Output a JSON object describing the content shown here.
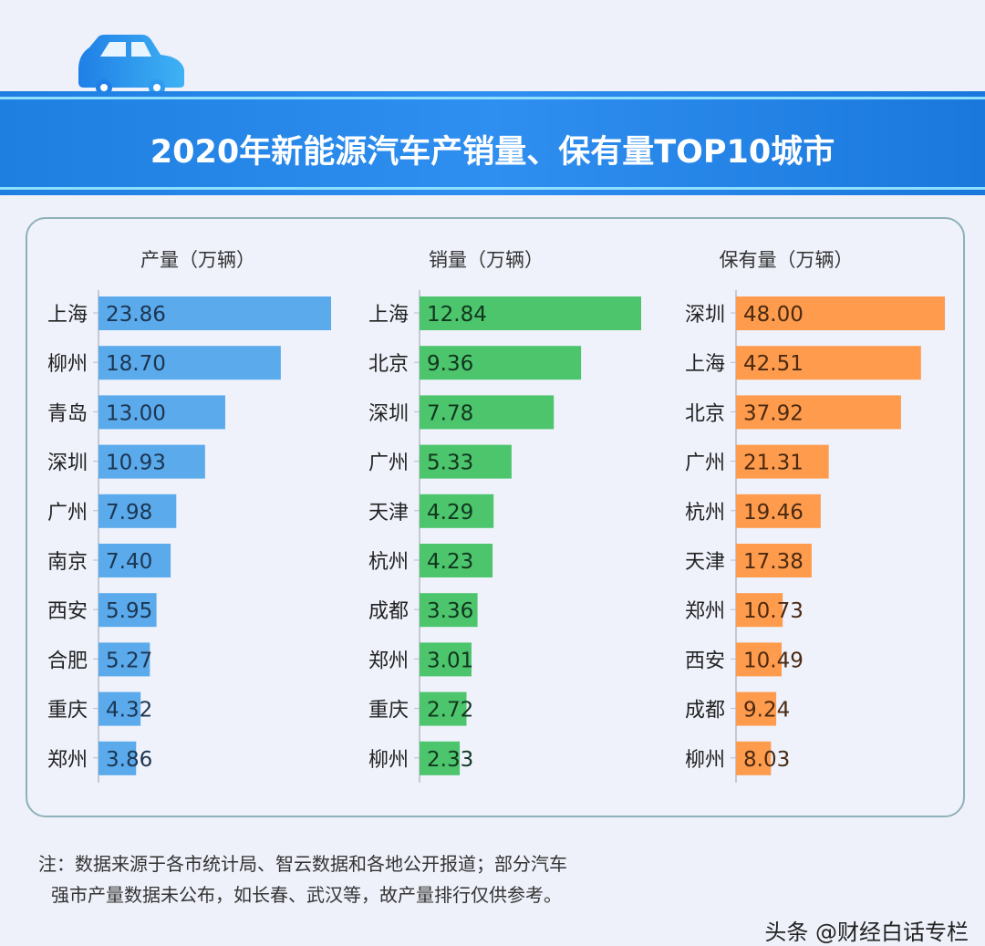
{
  "title": "2020年新能源汽车产销量、保有量TOP10城市",
  "icon": "car-icon",
  "colors": {
    "production": "#5aaaec",
    "sales": "#4cc56c",
    "ownership": "#ff9b4c",
    "band": "#2a88ec"
  },
  "chart_data": [
    {
      "type": "bar",
      "orientation": "horizontal",
      "title": "产量（万辆）",
      "categories": [
        "上海",
        "柳州",
        "青岛",
        "深圳",
        "广州",
        "南京",
        "西安",
        "合肥",
        "重庆",
        "郑州"
      ],
      "values": [
        23.86,
        18.7,
        13.0,
        10.93,
        7.98,
        7.4,
        5.95,
        5.27,
        4.32,
        3.86
      ],
      "labels": [
        "23.86",
        "18.70",
        "13.00",
        "10.93",
        "7.98",
        "7.40",
        "5.95",
        "5.27",
        "4.32",
        "3.86"
      ]
    },
    {
      "type": "bar",
      "orientation": "horizontal",
      "title": "销量（万辆）",
      "categories": [
        "上海",
        "北京",
        "深圳",
        "广州",
        "天津",
        "杭州",
        "成都",
        "郑州",
        "重庆",
        "柳州"
      ],
      "values": [
        12.84,
        9.36,
        7.78,
        5.33,
        4.29,
        4.23,
        3.36,
        3.01,
        2.72,
        2.33
      ],
      "labels": [
        "12.84",
        "9.36",
        "7.78",
        "5.33",
        "4.29",
        "4.23",
        "3.36",
        "3.01",
        "2.72",
        "2.33"
      ]
    },
    {
      "type": "bar",
      "orientation": "horizontal",
      "title": "保有量（万辆）",
      "categories": [
        "深圳",
        "上海",
        "北京",
        "广州",
        "杭州",
        "天津",
        "郑州",
        "西安",
        "成都",
        "柳州"
      ],
      "values": [
        48.0,
        42.51,
        37.92,
        21.31,
        19.46,
        17.38,
        10.73,
        10.49,
        9.24,
        8.03
      ],
      "labels": [
        "48.00",
        "42.51",
        "37.92",
        "21.31",
        "19.46",
        "17.38",
        "10.73",
        "10.49",
        "9.24",
        "8.03"
      ]
    }
  ],
  "note": {
    "line1": "注：数据来源于各市统计局、智云数据和各地公开报道；部分汽车",
    "line2": "强市产量数据未公布，如长春、武汉等，故产量排行仅供参考。"
  },
  "watermark": "头条 @财经白话专栏"
}
